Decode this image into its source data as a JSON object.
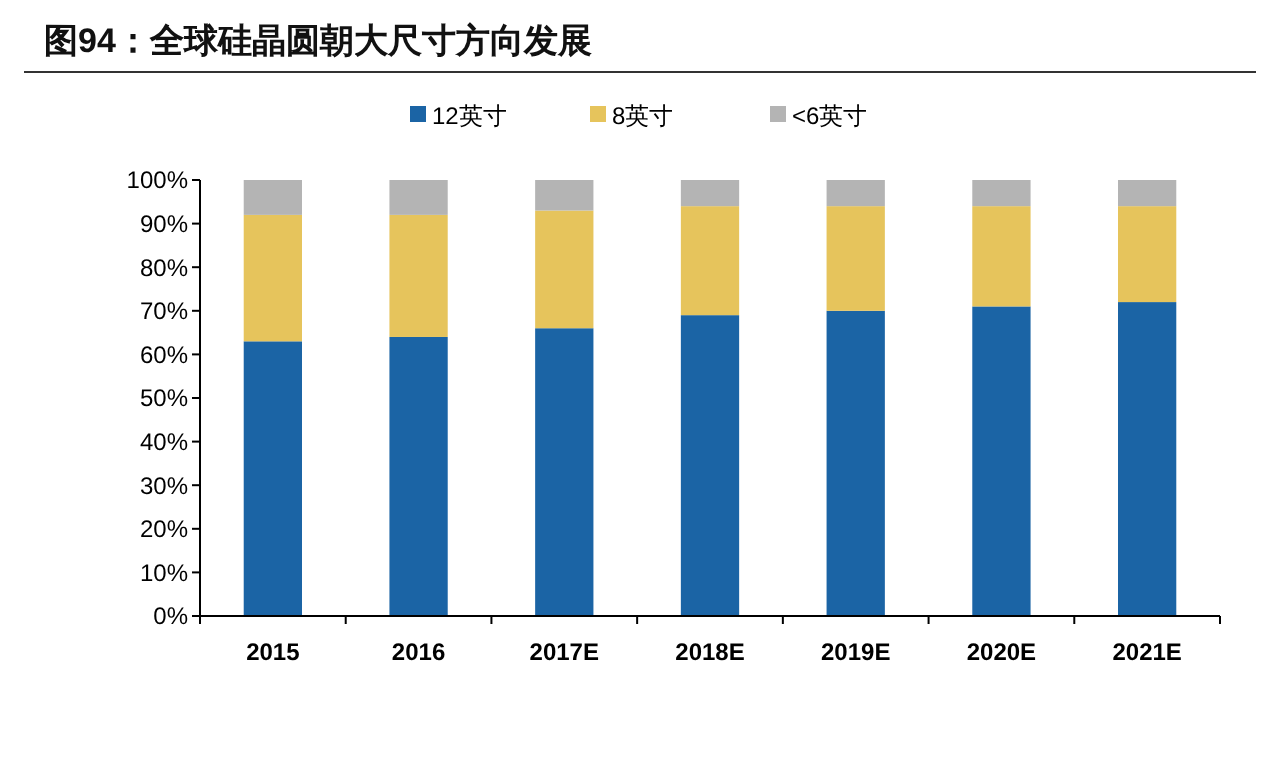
{
  "chart_data": {
    "type": "bar",
    "title": "图94：全球硅晶圆朝大尺寸方向发展",
    "categories": [
      "2015",
      "2016",
      "2017E",
      "2018E",
      "2019E",
      "2020E",
      "2021E"
    ],
    "stacked": true,
    "series": [
      {
        "name": "12英寸",
        "color": "#1b64a5",
        "values": [
          63,
          64,
          66,
          69,
          70,
          71,
          72
        ]
      },
      {
        "name": "8英寸",
        "color": "#e6c45c",
        "values": [
          29,
          28,
          27,
          25,
          24,
          23,
          22
        ]
      },
      {
        "name": "<6英寸",
        "color": "#b4b4b4",
        "values": [
          8,
          8,
          7,
          6,
          6,
          6,
          6
        ]
      }
    ],
    "ylim": [
      0,
      100
    ],
    "yticks": [
      {
        "value": 0,
        "label": "0%"
      },
      {
        "value": 10,
        "label": "10%"
      },
      {
        "value": 20,
        "label": "20%"
      },
      {
        "value": 30,
        "label": "30%"
      },
      {
        "value": 40,
        "label": "40%"
      },
      {
        "value": 50,
        "label": "50%"
      },
      {
        "value": 60,
        "label": "60%"
      },
      {
        "value": 70,
        "label": "70%"
      },
      {
        "value": 80,
        "label": "80%"
      },
      {
        "value": 90,
        "label": "90%"
      },
      {
        "value": 100,
        "label": "100%"
      }
    ],
    "legend": "top",
    "grid": false
  }
}
